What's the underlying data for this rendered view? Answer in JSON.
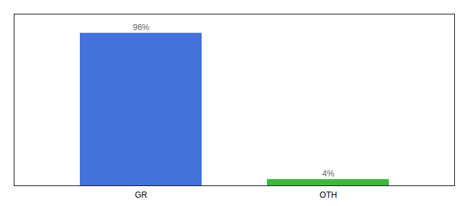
{
  "chart_data": {
    "type": "bar",
    "categories": [
      "GR",
      "OTH"
    ],
    "values": [
      96,
      4
    ],
    "value_labels": [
      "96%",
      "4%"
    ],
    "colors": [
      "#4472db",
      "#3cb83c"
    ],
    "ylim": [
      0,
      108
    ],
    "data_labels": true,
    "tick_labels": "x"
  }
}
